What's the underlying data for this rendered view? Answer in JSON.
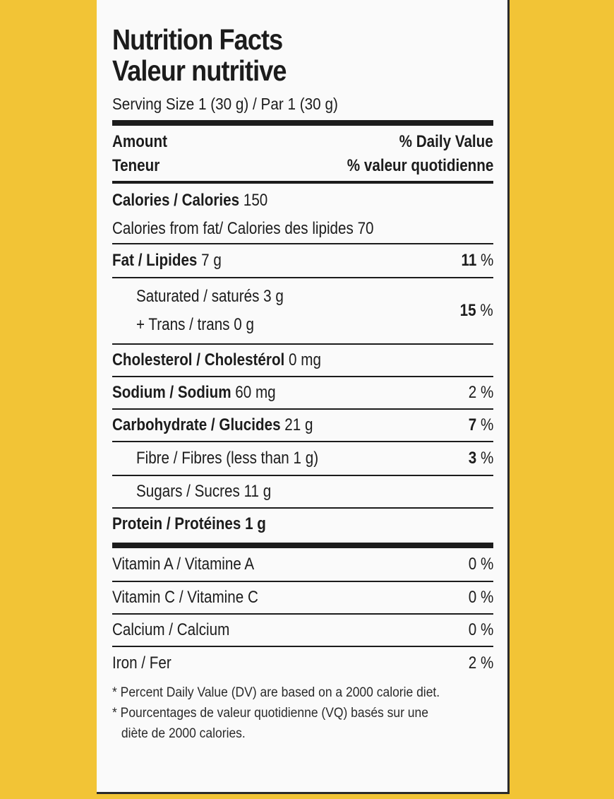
{
  "label": {
    "title_en": "Nutrition Facts",
    "title_fr": "Valeur nutritive",
    "serving": "Serving Size 1 (30 g) / Par 1 (30 g)",
    "header": {
      "amount_en": "Amount",
      "amount_fr": "Teneur",
      "dv_en": "% Daily Value",
      "dv_fr": "% valeur quotidienne"
    },
    "calories": {
      "label": "Calories / Calories",
      "value": "150"
    },
    "calories_fat": "Calories from fat/ Calories des lipides 70",
    "fat": {
      "label": "Fat / Lipides",
      "amount": "7 g",
      "pct": "11",
      "unit": "%"
    },
    "saturated": {
      "line1": "Saturated / saturés 3 g",
      "line2": "+ Trans / trans 0 g",
      "pct": "15",
      "unit": "%"
    },
    "cholesterol": {
      "label": "Cholesterol / Cholestérol",
      "amount": "0 mg"
    },
    "sodium": {
      "label": "Sodium / Sodium",
      "amount": "60 mg",
      "pct": "2",
      "unit": "%"
    },
    "carbohydrate": {
      "label": "Carbohydrate / Glucides",
      "amount": "21 g",
      "pct": "7",
      "unit": "%"
    },
    "fibre": {
      "label": "Fibre / Fibres (less than 1 g)",
      "pct": "3",
      "unit": "%"
    },
    "sugars": {
      "label": "Sugars / Sucres 11 g"
    },
    "protein": {
      "label": "Protein / Protéines 1 g"
    },
    "vitamins": [
      {
        "label": "Vitamin A / Vitamine A",
        "pct": "0",
        "unit": "%"
      },
      {
        "label": "Vitamin C / Vitamine C",
        "pct": "0",
        "unit": "%"
      },
      {
        "label": "Calcium / Calcium",
        "pct": "0",
        "unit": "%"
      },
      {
        "label": "Iron / Fer",
        "pct": "2",
        "unit": "%"
      }
    ],
    "footnote_en": "* Percent Daily Value (DV) are based on a 2000 calorie diet.",
    "footnote_fr_1": "* Pourcentages de valeur quotidienne (VQ) basés sur une",
    "footnote_fr_2": "diète de 2000 calories."
  },
  "colors": {
    "background": "#f2c436",
    "panel": "#fafafa",
    "ink": "#1c1c1c"
  }
}
